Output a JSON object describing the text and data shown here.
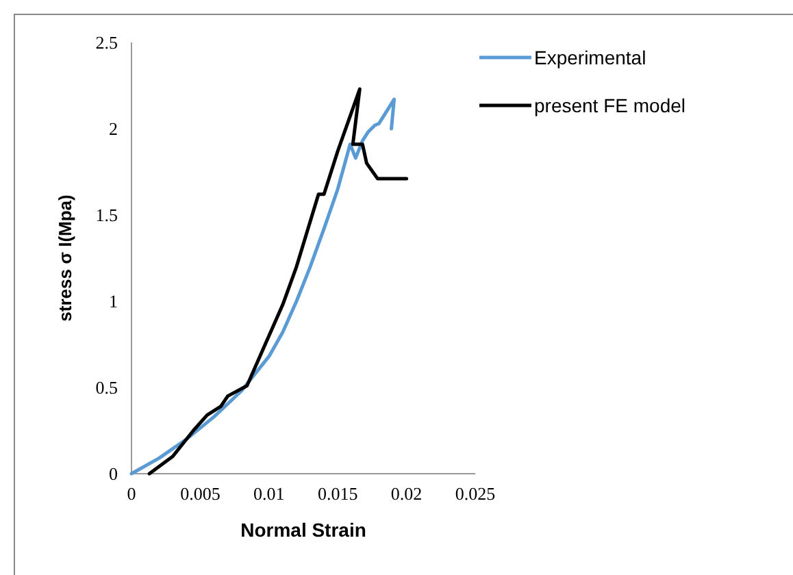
{
  "chart_data": {
    "type": "line",
    "xlabel": "Normal Strain",
    "ylabel": "stress σ I(Mpa)",
    "xlim": [
      0,
      0.025
    ],
    "xticks": [
      0,
      0.005,
      0.01,
      0.015,
      0.02,
      0.025
    ],
    "ylim": [
      0,
      2.5
    ],
    "yticks": [
      0,
      0.5,
      1,
      1.5,
      2,
      2.5
    ],
    "grid": false,
    "legend": "top right",
    "marker": "none",
    "line_style": "solid",
    "series": [
      {
        "name": "Experimental",
        "color": "#5b9bd5",
        "x": [
          0,
          0.002,
          0.004,
          0.006,
          0.008,
          0.01,
          0.011,
          0.012,
          0.013,
          0.014,
          0.015,
          0.0159,
          0.0163,
          0.0168,
          0.0172,
          0.0177,
          0.018,
          0.0191,
          0.0189
        ],
        "values": [
          0,
          0.09,
          0.2,
          0.33,
          0.48,
          0.68,
          0.82,
          1.0,
          1.2,
          1.42,
          1.65,
          1.91,
          1.83,
          1.93,
          1.98,
          2.02,
          2.03,
          2.17,
          2.0
        ]
      },
      {
        "name": "present FE model",
        "color": "#000000",
        "x": [
          0.0013,
          0.003,
          0.0045,
          0.0055,
          0.0065,
          0.007,
          0.0084,
          0.01,
          0.011,
          0.012,
          0.0136,
          0.014,
          0.015,
          0.0166,
          0.0161,
          0.0166,
          0.0168,
          0.0171,
          0.0179,
          0.02
        ],
        "values": [
          0,
          0.1,
          0.25,
          0.34,
          0.39,
          0.45,
          0.51,
          0.8,
          0.98,
          1.2,
          1.62,
          1.62,
          1.87,
          2.23,
          1.91,
          1.91,
          1.91,
          1.8,
          1.71,
          1.71
        ]
      }
    ]
  }
}
